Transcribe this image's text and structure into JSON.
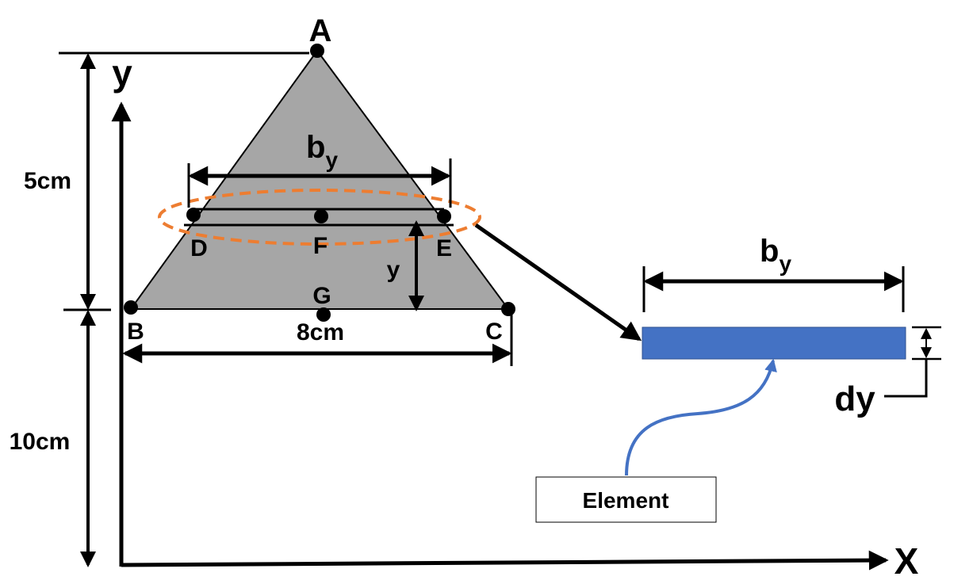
{
  "points": {
    "A": "A",
    "B": "B",
    "C": "C",
    "D": "D",
    "E": "E",
    "F": "F",
    "G": "G"
  },
  "axes": {
    "x_label": "X",
    "y_label": "y"
  },
  "dimensions": {
    "top_height": "5cm",
    "bottom_height": "10cm",
    "base_width": "8cm",
    "strip_height_label": "y"
  },
  "strip": {
    "width_main": "b",
    "width_sub": "y"
  },
  "element": {
    "width_main": "b",
    "width_sub": "y",
    "thickness": "dy",
    "callout": "Element"
  },
  "colors": {
    "triangle_fill": "#a6a6a6",
    "highlight": "#ed7d31",
    "element_fill": "#4472c4",
    "callout_arrow": "#4472c4",
    "line": "#000000"
  }
}
